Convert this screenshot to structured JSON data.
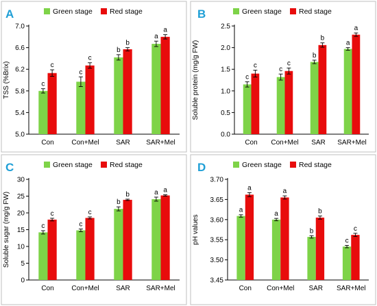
{
  "colors": {
    "green": "#7ed348",
    "red": "#e80c0c"
  },
  "chart_data": [
    {
      "type": "bar",
      "panel": "A",
      "categories": [
        "Con",
        "Con+Mel",
        "SAR",
        "SAR+Mel"
      ],
      "ylabel": "TSS (%Brix)",
      "ylim": [
        5.0,
        7.0
      ],
      "yticks": [
        "5.0",
        "5.4",
        "5.8",
        "6.2",
        "6.6",
        "7.0"
      ],
      "series": [
        {
          "name": "Green stage",
          "values": [
            5.8,
            5.97,
            6.42,
            6.67
          ],
          "errors": [
            0.04,
            0.09,
            0.05,
            0.05
          ],
          "labels": [
            "c",
            "c",
            "b",
            "a"
          ]
        },
        {
          "name": "Red stage",
          "values": [
            6.13,
            6.27,
            6.57,
            6.8
          ],
          "errors": [
            0.06,
            0.05,
            0.03,
            0.04
          ],
          "labels": [
            "c",
            "c",
            "b",
            "a"
          ]
        }
      ]
    },
    {
      "type": "bar",
      "panel": "B",
      "categories": [
        "Con",
        "Con+Mel",
        "SAR",
        "SAR+Mel"
      ],
      "ylabel": "Soluble protein (mg/g FW)",
      "ylim": [
        0.0,
        2.5
      ],
      "yticks": [
        "0.0",
        "0.5",
        "1.0",
        "1.5",
        "2.0",
        "2.5"
      ],
      "series": [
        {
          "name": "Green stage",
          "values": [
            1.15,
            1.32,
            1.67,
            1.97
          ],
          "errors": [
            0.06,
            0.07,
            0.04,
            0.03
          ],
          "labels": [
            "c",
            "c",
            "b",
            "a"
          ]
        },
        {
          "name": "Red stage",
          "values": [
            1.4,
            1.46,
            2.06,
            2.3
          ],
          "errors": [
            0.08,
            0.07,
            0.05,
            0.04
          ],
          "labels": [
            "c",
            "c",
            "b",
            "a"
          ]
        }
      ]
    },
    {
      "type": "bar",
      "panel": "C",
      "categories": [
        "Con",
        "Con+Mel",
        "SAR",
        "SAR+Mel"
      ],
      "ylabel": "Soluble sugar (mg/g FW)",
      "ylim": [
        0,
        30
      ],
      "yticks": [
        "0",
        "5",
        "10",
        "15",
        "20",
        "25",
        "30"
      ],
      "series": [
        {
          "name": "Green stage",
          "values": [
            14.2,
            14.8,
            21.2,
            24.1
          ],
          "errors": [
            0.5,
            0.4,
            0.6,
            0.6
          ],
          "labels": [
            "c",
            "c",
            "b",
            "a"
          ]
        },
        {
          "name": "Red stage",
          "values": [
            18.0,
            18.5,
            23.9,
            25.2
          ],
          "errors": [
            0.4,
            0.3,
            0.2,
            0.2
          ],
          "labels": [
            "c",
            "c",
            "b",
            "a"
          ]
        }
      ]
    },
    {
      "type": "bar",
      "panel": "D",
      "categories": [
        "Con",
        "Con+Mel",
        "SAR",
        "SAR+Mel"
      ],
      "ylabel": "pH values",
      "ylim": [
        3.45,
        3.7
      ],
      "yticks": [
        "3.45",
        "3.50",
        "3.55",
        "3.60",
        "3.65",
        "3.70"
      ],
      "series": [
        {
          "name": "Green stage",
          "values": [
            3.609,
            3.6,
            3.557,
            3.533
          ],
          "errors": [
            0.003,
            0.003,
            0.003,
            0.003
          ],
          "labels": [
            "a",
            "a",
            "b",
            "c"
          ]
        },
        {
          "name": "Red stage",
          "values": [
            3.662,
            3.655,
            3.605,
            3.562
          ],
          "errors": [
            0.005,
            0.004,
            0.004,
            0.004
          ],
          "labels": [
            "a",
            "a",
            "b",
            "c"
          ]
        }
      ]
    }
  ]
}
